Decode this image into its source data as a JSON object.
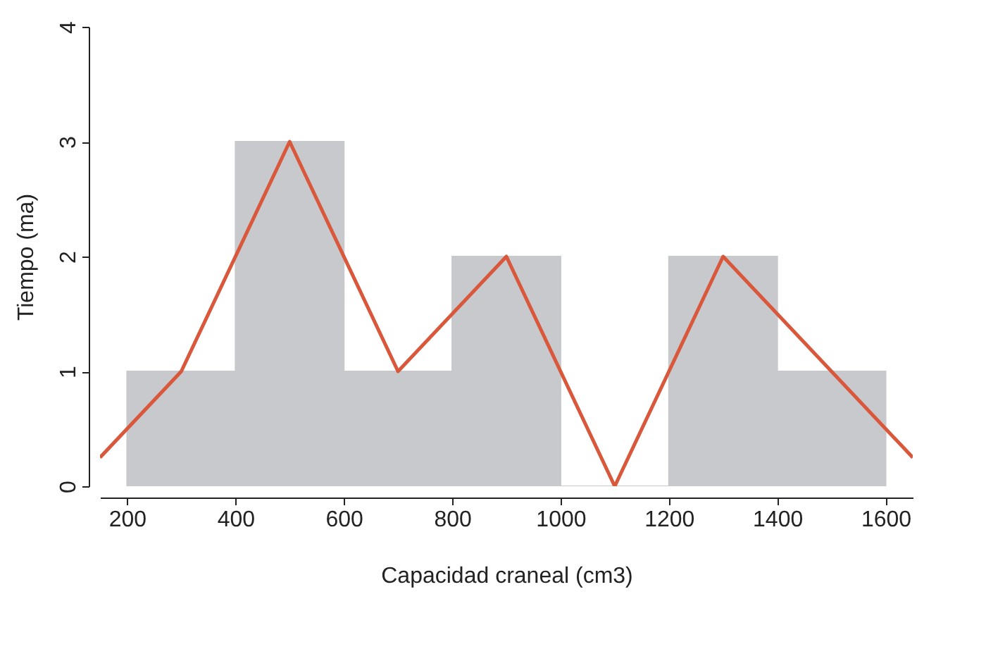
{
  "chart_data": {
    "type": "histogram",
    "xlabel": "Capacidad craneal (cm3)",
    "ylabel": "Tiempo (ma)",
    "bins": [
      200,
      400,
      600,
      800,
      1000,
      1200,
      1400,
      1600
    ],
    "values": [
      1,
      3,
      1,
      2,
      0,
      2,
      1
    ],
    "color": "#c8c9cc",
    "series": [
      {
        "type": "line",
        "color": "#d9583b",
        "x": [
          150,
          300,
          500,
          700,
          900,
          1100,
          1300,
          1500,
          1650
        ],
        "values": [
          0.25,
          1,
          3,
          1,
          2,
          0,
          2,
          1,
          0.25
        ]
      }
    ],
    "xlim": [
      150,
      1650
    ],
    "xticks": [
      200,
      400,
      600,
      800,
      1000,
      1200,
      1400,
      1600
    ],
    "ylim": [
      0,
      4
    ],
    "yticks": [
      0,
      1,
      2,
      3,
      4
    ],
    "grid": false
  }
}
